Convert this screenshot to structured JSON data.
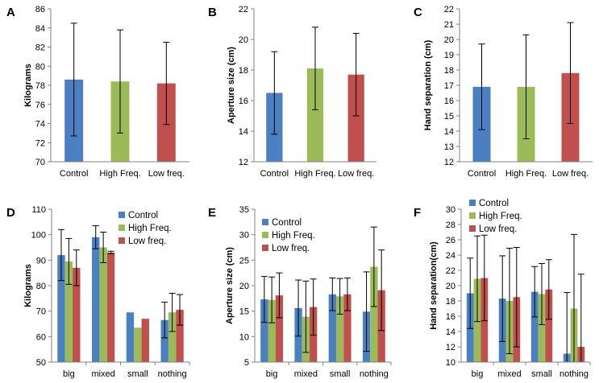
{
  "chart_data": [
    {
      "panel": "A",
      "type": "bar",
      "ylabel": "Kilograms",
      "ylim": [
        70,
        86
      ],
      "ystep": 2,
      "categories": [
        "Control",
        "High Freq.",
        "Low freq."
      ],
      "values": [
        78.6,
        78.4,
        78.2
      ],
      "errors": [
        5.9,
        5.4,
        4.3
      ],
      "colors": [
        "#4a7fc1",
        "#9bbb59",
        "#c0504d"
      ]
    },
    {
      "panel": "B",
      "type": "bar",
      "ylabel": "Aperture size (cm)",
      "ylim": [
        12,
        22
      ],
      "ystep": 2,
      "categories": [
        "Control",
        "High Freq.",
        "Low freq."
      ],
      "values": [
        16.5,
        18.1,
        17.7
      ],
      "errors": [
        2.7,
        2.7,
        2.7
      ],
      "colors": [
        "#4a7fc1",
        "#9bbb59",
        "#c0504d"
      ]
    },
    {
      "panel": "C",
      "type": "bar",
      "ylabel": "Hand separation (cm)",
      "ylim": [
        12,
        22
      ],
      "ystep": 1,
      "categories": [
        "Control",
        "High Freq.",
        "Low freq."
      ],
      "values": [
        16.9,
        16.9,
        17.8
      ],
      "errors": [
        2.8,
        3.4,
        3.3
      ],
      "colors": [
        "#4a7fc1",
        "#9bbb59",
        "#c0504d"
      ]
    },
    {
      "panel": "D",
      "type": "bar",
      "ylabel": "Kilograms",
      "ylim": [
        50,
        110
      ],
      "ystep": 10,
      "categories": [
        "big",
        "mixed",
        "small",
        "nothing"
      ],
      "legend": "top-right",
      "series": [
        {
          "name": "Control",
          "color": "#4a7fc1",
          "values": [
            92,
            99,
            69.5,
            66.5
          ],
          "errors": [
            10,
            4.5,
            0,
            7
          ]
        },
        {
          "name": "High Freq.",
          "color": "#9bbb59",
          "values": [
            89.5,
            95,
            63.5,
            69.5
          ],
          "errors": [
            9,
            6,
            0,
            7.5
          ]
        },
        {
          "name": "Low freq.",
          "color": "#c0504d",
          "values": [
            87,
            93,
            67,
            70.5
          ],
          "errors": [
            7,
            0.5,
            0,
            6
          ]
        }
      ]
    },
    {
      "panel": "E",
      "type": "bar",
      "ylabel": "Aperture size (cm)",
      "ylim": [
        5,
        35
      ],
      "ystep": 5,
      "categories": [
        "big",
        "mixed",
        "small",
        "nothing"
      ],
      "legend": "top-left",
      "series": [
        {
          "name": "Control",
          "color": "#4a7fc1",
          "values": [
            17.3,
            15.6,
            18.3,
            14.9
          ],
          "errors": [
            4.5,
            5.5,
            3.2,
            7.8
          ]
        },
        {
          "name": "High Freq.",
          "color": "#9bbb59",
          "values": [
            17.2,
            13.9,
            17.9,
            23.7
          ],
          "errors": [
            4.5,
            7.0,
            3.5,
            7.8
          ]
        },
        {
          "name": "Low freq.",
          "color": "#c0504d",
          "values": [
            18.1,
            15.8,
            18.3,
            19.1
          ],
          "errors": [
            4.4,
            5.5,
            3.2,
            7.9
          ]
        }
      ]
    },
    {
      "panel": "F",
      "type": "bar",
      "ylabel": "Hand separation(cm)",
      "ylim": [
        10,
        30
      ],
      "ystep": 2,
      "categories": [
        "big",
        "mixed",
        "small",
        "nothing"
      ],
      "legend": "top-left",
      "series": [
        {
          "name": "Control",
          "color": "#4a7fc1",
          "values": [
            19.0,
            18.3,
            19.2,
            11.1
          ],
          "errors": [
            4.6,
            5.6,
            3.3,
            8.0
          ]
        },
        {
          "name": "High Freq.",
          "color": "#9bbb59",
          "values": [
            20.9,
            18.0,
            18.9,
            17.0
          ],
          "errors": [
            5.6,
            6.9,
            4.0,
            9.7
          ]
        },
        {
          "name": "Low freq.",
          "color": "#c0504d",
          "values": [
            21.0,
            18.5,
            19.5,
            12.0
          ],
          "errors": [
            5.6,
            6.5,
            3.9,
            9.5
          ]
        }
      ]
    }
  ]
}
